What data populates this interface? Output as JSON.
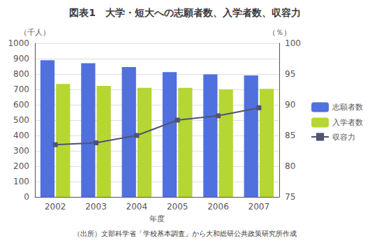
{
  "chart_data": {
    "type": "bar",
    "title": "図表1　大学・短大への志願者数、入学者数、収容力",
    "ylabel": "（千人）",
    "y2label": "（％）",
    "xlabel": "年度",
    "caption": "（出所）文部科学省「学校基本調査」から大和総研公共政策研究所作成",
    "categories": [
      "2002",
      "2003",
      "2004",
      "2005",
      "2006",
      "2007"
    ],
    "series": [
      {
        "name": "志願者数",
        "type": "bar",
        "values": [
          890,
          870,
          845,
          812,
          798,
          791
        ]
      },
      {
        "name": "入学者数",
        "type": "bar",
        "values": [
          735,
          723,
          710,
          710,
          700,
          703
        ]
      },
      {
        "name": "収容力",
        "type": "line",
        "marker": "square",
        "axis": "y2",
        "values": [
          83.5,
          83.8,
          85.0,
          87.5,
          88.2,
          89.5
        ]
      }
    ],
    "ylim": [
      0,
      1000
    ],
    "yticks": [
      0,
      100,
      200,
      300,
      400,
      500,
      600,
      700,
      800,
      900,
      1000
    ],
    "y2lim": [
      75,
      100
    ],
    "y2ticks": [
      75,
      80,
      85,
      90,
      95,
      100
    ],
    "grid": true,
    "legend": "right"
  }
}
